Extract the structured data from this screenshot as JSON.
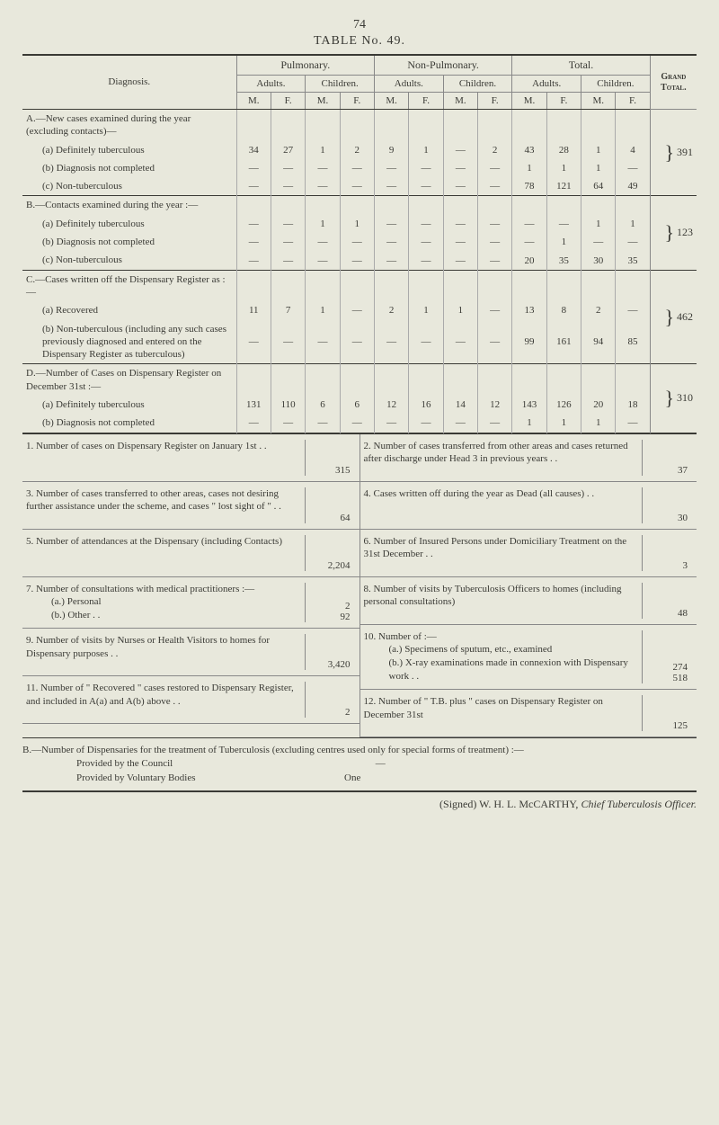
{
  "page_number": "74",
  "table_title": "TABLE No. 49.",
  "headers": {
    "diagnosis": "Diagnosis.",
    "pulmonary": "Pulmonary.",
    "nonpulmonary": "Non-Pulmonary.",
    "total": "Total.",
    "grand_total": "Grand Total.",
    "adults": "Adults.",
    "children": "Children.",
    "M": "M.",
    "F": "F."
  },
  "sections": [
    {
      "heading": "A.—New cases examined during the year (excluding contacts)—",
      "rows": [
        {
          "label": "(a) Definitely tuberculous",
          "cells": [
            "34",
            "27",
            "1",
            "2",
            "9",
            "1",
            "—",
            "2",
            "43",
            "28",
            "1",
            "4"
          ]
        },
        {
          "label": "(b) Diagnosis not completed",
          "cells": [
            "—",
            "—",
            "—",
            "—",
            "—",
            "—",
            "—",
            "—",
            "1",
            "1",
            "1",
            "—"
          ]
        },
        {
          "label": "(c) Non-tuberculous",
          "cells": [
            "—",
            "—",
            "—",
            "—",
            "—",
            "—",
            "—",
            "—",
            "78",
            "121",
            "64",
            "49"
          ]
        }
      ],
      "grand": "391"
    },
    {
      "heading": "B.—Contacts examined during the year :—",
      "rows": [
        {
          "label": "(a) Definitely tuberculous",
          "cells": [
            "—",
            "—",
            "1",
            "1",
            "—",
            "—",
            "—",
            "—",
            "—",
            "—",
            "1",
            "1"
          ]
        },
        {
          "label": "(b) Diagnosis not completed",
          "cells": [
            "—",
            "—",
            "—",
            "—",
            "—",
            "—",
            "—",
            "—",
            "—",
            "1",
            "—",
            "—"
          ]
        },
        {
          "label": "(c) Non-tuberculous",
          "cells": [
            "—",
            "—",
            "—",
            "—",
            "—",
            "—",
            "—",
            "—",
            "20",
            "35",
            "30",
            "35"
          ]
        }
      ],
      "grand": "123"
    },
    {
      "heading": "C.—Cases written off the Dispensary Register as :—",
      "rows": [
        {
          "label": "(a) Recovered",
          "cells": [
            "11",
            "7",
            "1",
            "—",
            "2",
            "1",
            "1",
            "—",
            "13",
            "8",
            "2",
            "—"
          ]
        },
        {
          "label": "(b) Non-tuberculous (including any such cases previously diagnosed and entered on the Dispensary Register as tuberculous)",
          "cells": [
            "—",
            "—",
            "—",
            "—",
            "—",
            "—",
            "—",
            "—",
            "99",
            "161",
            "94",
            "85"
          ]
        }
      ],
      "grand": "462"
    },
    {
      "heading": "D.—Number of Cases on Dispensary Register on December 31st :—",
      "rows": [
        {
          "label": "(a) Definitely tuberculous",
          "cells": [
            "131",
            "110",
            "6",
            "6",
            "12",
            "16",
            "14",
            "12",
            "143",
            "126",
            "20",
            "18"
          ]
        },
        {
          "label": "(b) Diagnosis not completed",
          "cells": [
            "—",
            "—",
            "—",
            "—",
            "—",
            "—",
            "—",
            "—",
            "1",
            "1",
            "1",
            "—"
          ]
        }
      ],
      "grand": "310"
    }
  ],
  "lower_left": [
    {
      "n": "1.",
      "text": "Number of cases on Dispensary Register on January 1st  . .",
      "val": "315"
    },
    {
      "n": "3.",
      "text": "Number of cases transferred to other areas, cases not desiring further assistance under the scheme, and cases \" lost sight of \"  . .",
      "val": "64"
    },
    {
      "n": "5.",
      "text": "Number of attendances at the Dispensary (including Contacts)",
      "val": "2,204"
    },
    {
      "n": "7.",
      "text": "Number of consultations with medical practitioners :—\n(a.) Personal\n(b.) Other . .",
      "val": "2\n92"
    },
    {
      "n": "9.",
      "text": "Number of visits by Nurses or Health Visitors to homes for Dispensary purposes . .",
      "val": "3,420"
    },
    {
      "n": "11.",
      "text": "Number of \" Recovered \" cases restored to Dispensary Register, and included in A(a) and A(b) above  . .",
      "val": "2"
    }
  ],
  "lower_right": [
    {
      "n": "2.",
      "text": "Number of cases transferred from other areas and cases returned after discharge under Head 3 in previous years . .",
      "val": "37"
    },
    {
      "n": "4.",
      "text": "Cases written off during the year as Dead (all causes)  . .",
      "val": "30"
    },
    {
      "n": "6.",
      "text": "Number of Insured Persons under Domiciliary Treatment on the 31st December . .",
      "val": "3"
    },
    {
      "n": "8.",
      "text": "Number of visits by Tuberculosis Officers to homes (including personal consultations)",
      "val": "48"
    },
    {
      "n": "10.",
      "text": "Number of :—\n(a.) Specimens of sputum, etc., examined\n(b.) X-ray examinations made in connexion with Dispensary work  . .",
      "val": "274\n518"
    },
    {
      "n": "12.",
      "text": "Number of \" T.B. plus \" cases on Dispensary Register on December 31st",
      "val": "125"
    }
  ],
  "footer": {
    "line1": "B.—Number of Dispensaries for the treatment of Tuberculosis (excluding centres used only for special forms of treatment) :—",
    "line2": "Provided by the Council",
    "line2v": "—",
    "line3": "Provided by Voluntary Bodies",
    "line3v": "One"
  },
  "signature": "(Signed) W. H. L. McCARTHY, Chief Tuberculosis Officer.",
  "style": {
    "dot": ".",
    "dash": "—"
  }
}
